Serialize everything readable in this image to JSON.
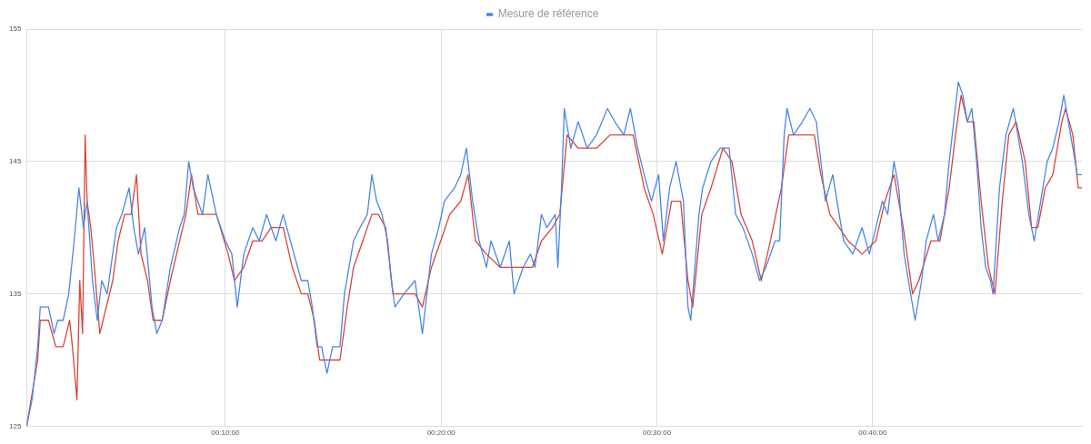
{
  "chart_data": {
    "type": "line",
    "xlim": [
      0.79,
      49.7
    ],
    "ylim": [
      125,
      155
    ],
    "xticks": [
      {
        "value": 10,
        "label": "00:10:00"
      },
      {
        "value": 20,
        "label": "00:20:00"
      },
      {
        "value": 30,
        "label": "00:30:00"
      },
      {
        "value": 40,
        "label": "00:40:00"
      }
    ],
    "yticks": [
      125,
      135,
      145,
      155
    ],
    "grid": true,
    "legend": "top",
    "marker": "none",
    "line_style": "solid",
    "series": [
      {
        "name": "Mesure de référence",
        "color": "#4a86e8",
        "x": [
          0.79,
          1.04,
          1.3,
          1.42,
          1.8,
          2.06,
          2.23,
          2.48,
          2.74,
          2.99,
          3.21,
          3.42,
          3.59,
          3.84,
          4.06,
          4.27,
          4.52,
          4.69,
          4.95,
          5.2,
          5.54,
          5.75,
          5.97,
          6.26,
          6.6,
          6.82,
          7.07,
          7.45,
          7.88,
          8.09,
          8.3,
          8.51,
          8.94,
          9.19,
          9.58,
          10.0,
          10.3,
          10.55,
          10.85,
          11.27,
          11.57,
          11.91,
          12.34,
          12.68,
          13.18,
          13.52,
          13.82,
          14.03,
          14.25,
          14.46,
          14.71,
          14.97,
          15.31,
          15.52,
          15.73,
          15.94,
          16.24,
          16.58,
          16.79,
          17.01,
          17.26,
          17.52,
          17.69,
          17.86,
          18.28,
          18.79,
          19.13,
          19.55,
          19.89,
          20.15,
          20.62,
          20.91,
          21.17,
          21.46,
          21.76,
          22.1,
          22.31,
          22.74,
          23.16,
          23.38,
          23.8,
          24.14,
          24.35,
          24.65,
          24.9,
          25.29,
          25.41,
          25.58,
          25.71,
          26.01,
          26.35,
          26.77,
          27.2,
          27.71,
          28.05,
          28.47,
          28.77,
          29.11,
          29.41,
          29.75,
          30.08,
          30.3,
          30.59,
          30.89,
          31.23,
          31.44,
          31.57,
          31.95,
          32.12,
          32.51,
          32.93,
          33.35,
          33.65,
          33.99,
          34.42,
          34.76,
          35.05,
          35.48,
          35.69,
          35.9,
          36.03,
          36.33,
          36.75,
          37.09,
          37.39,
          37.6,
          37.81,
          38.15,
          38.45,
          38.66,
          39.08,
          39.51,
          39.85,
          40.15,
          40.45,
          40.7,
          40.99,
          41.21,
          41.46,
          41.76,
          41.97,
          42.27,
          42.48,
          42.82,
          43.04,
          43.33,
          43.55,
          43.76,
          43.97,
          44.18,
          44.39,
          44.6,
          44.82,
          45.03,
          45.24,
          45.46,
          45.58,
          45.88,
          46.18,
          46.52,
          46.73,
          46.94,
          47.24,
          47.49,
          47.79,
          48.09,
          48.35,
          48.64,
          48.86,
          49.07,
          49.28,
          49.49,
          49.7
        ],
        "values": [
          125,
          127,
          131,
          134,
          134,
          132,
          133,
          133,
          135,
          139,
          143,
          140,
          142,
          136,
          133,
          136,
          135,
          137,
          140,
          141,
          143,
          140,
          138,
          140,
          134,
          132,
          133,
          137,
          140,
          141,
          145,
          143,
          141,
          144,
          141,
          139,
          138,
          134,
          138,
          140,
          139,
          141,
          139,
          141,
          138,
          136,
          136,
          134,
          131,
          131,
          129,
          131,
          131,
          135,
          137,
          139,
          140,
          141,
          144,
          142,
          141,
          139,
          136,
          134,
          135,
          136,
          132,
          138,
          140,
          142,
          143,
          144,
          146,
          142,
          139,
          137,
          139,
          137,
          139,
          135,
          137,
          138,
          137,
          141,
          140,
          141,
          137,
          143,
          149,
          146,
          148,
          146,
          147,
          149,
          148,
          147,
          149,
          146,
          144,
          142,
          144,
          139,
          143,
          145,
          142,
          134,
          133,
          141,
          143,
          145,
          146,
          146,
          141,
          140,
          138,
          136,
          137,
          139,
          139,
          147,
          149,
          147,
          148,
          149,
          148,
          145,
          142,
          144,
          141,
          139,
          138,
          140,
          138,
          140,
          142,
          141,
          145,
          143,
          138,
          135,
          133,
          136,
          139,
          141,
          139,
          141,
          145,
          148,
          151,
          150,
          148,
          149,
          145,
          140,
          137,
          136,
          135,
          143,
          147,
          149,
          147,
          145,
          141,
          139,
          142,
          145,
          146,
          148,
          150,
          148,
          146,
          144,
          144
        ]
      },
      {
        "color": "#db4437",
        "x": [
          0.79,
          1.3,
          1.42,
          1.8,
          2.14,
          2.48,
          2.78,
          2.91,
          3.12,
          3.25,
          3.38,
          3.5,
          3.59,
          3.76,
          3.93,
          4.18,
          4.48,
          4.78,
          5.03,
          5.33,
          5.63,
          5.88,
          6.09,
          6.39,
          6.65,
          7.07,
          7.45,
          7.88,
          8.17,
          8.43,
          8.73,
          9.15,
          9.58,
          10.13,
          10.42,
          10.85,
          11.27,
          11.7,
          12.12,
          12.68,
          13.1,
          13.52,
          13.82,
          14.12,
          14.37,
          14.63,
          14.88,
          15.31,
          15.65,
          15.94,
          16.37,
          16.79,
          17.09,
          17.43,
          17.77,
          18.2,
          18.79,
          19.13,
          19.55,
          19.98,
          20.4,
          20.91,
          21.25,
          21.59,
          22.1,
          22.74,
          23.29,
          23.8,
          24.23,
          24.65,
          25.16,
          25.5,
          25.84,
          26.35,
          26.77,
          27.2,
          27.83,
          28.47,
          28.9,
          29.41,
          29.83,
          30.25,
          30.68,
          31.1,
          31.44,
          31.66,
          32.08,
          32.51,
          33.06,
          33.48,
          33.9,
          34.42,
          34.84,
          35.26,
          35.77,
          36.11,
          36.75,
          37.3,
          37.6,
          38.02,
          38.45,
          38.87,
          39.51,
          40.15,
          40.57,
          40.99,
          41.42,
          41.85,
          42.14,
          42.7,
          43.12,
          43.55,
          43.84,
          44.1,
          44.39,
          44.69,
          45.03,
          45.37,
          45.67,
          46.01,
          46.31,
          46.65,
          47.07,
          47.37,
          47.66,
          48.0,
          48.35,
          48.77,
          48.94,
          49.28,
          49.53,
          49.7
        ],
        "values": [
          125,
          130,
          133,
          133,
          131,
          131,
          133,
          131,
          127,
          136,
          132,
          147,
          142,
          140,
          137,
          132,
          134,
          136,
          139,
          141,
          141,
          144,
          138,
          136,
          133,
          133,
          136,
          139,
          141,
          144,
          141,
          141,
          141,
          138,
          136,
          137,
          139,
          139,
          140,
          140,
          137,
          135,
          135,
          133,
          130,
          130,
          130,
          130,
          134,
          137,
          139,
          141,
          141,
          140,
          135,
          135,
          135,
          134,
          137,
          139,
          141,
          142,
          144,
          139,
          138,
          137,
          137,
          137,
          137,
          139,
          140,
          141,
          147,
          146,
          146,
          146,
          147,
          147,
          147,
          143,
          141,
          138,
          142,
          142,
          136,
          134,
          141,
          143,
          146,
          145,
          141,
          139,
          136,
          139,
          143,
          147,
          147,
          147,
          144,
          141,
          140,
          139,
          138,
          139,
          142,
          144,
          140,
          135,
          136,
          139,
          139,
          143,
          147,
          150,
          148,
          148,
          142,
          137,
          135,
          142,
          147,
          148,
          145,
          140,
          140,
          143,
          144,
          148,
          149,
          147,
          143,
          143
        ]
      }
    ]
  }
}
